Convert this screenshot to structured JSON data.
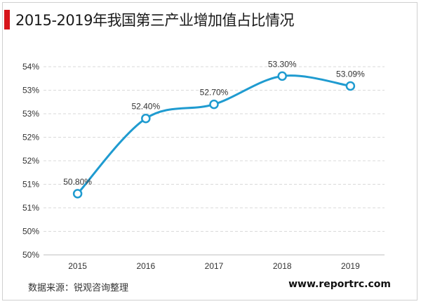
{
  "header": {
    "title": "2015-2019年我国第三产业增加值占比情况"
  },
  "footer": {
    "source": "数据来源：锐观咨询整理",
    "website": "www.reportrc.com"
  },
  "colors": {
    "accent": "#d7141a",
    "line": "#1f9bd0",
    "grid": "#d9d9d9"
  },
  "chart_data": {
    "type": "line",
    "categories": [
      "2015",
      "2016",
      "2017",
      "2018",
      "2019"
    ],
    "series": [
      {
        "values": [
          50.8,
          52.4,
          52.7,
          53.3,
          53.09
        ],
        "labels": [
          "50.80%",
          "52.40%",
          "52.70%",
          "53.30%",
          "53.09%"
        ]
      }
    ],
    "y_tick_labels": [
      "50%",
      "50%",
      "51%",
      "51%",
      "52%",
      "52%",
      "53%",
      "53%",
      "54%"
    ],
    "ylim": [
      49.5,
      53.5
    ],
    "y_step": 0.5,
    "grid": true,
    "legend": "none",
    "title": "2015-2019年我国第三产业增加值占比情况"
  }
}
